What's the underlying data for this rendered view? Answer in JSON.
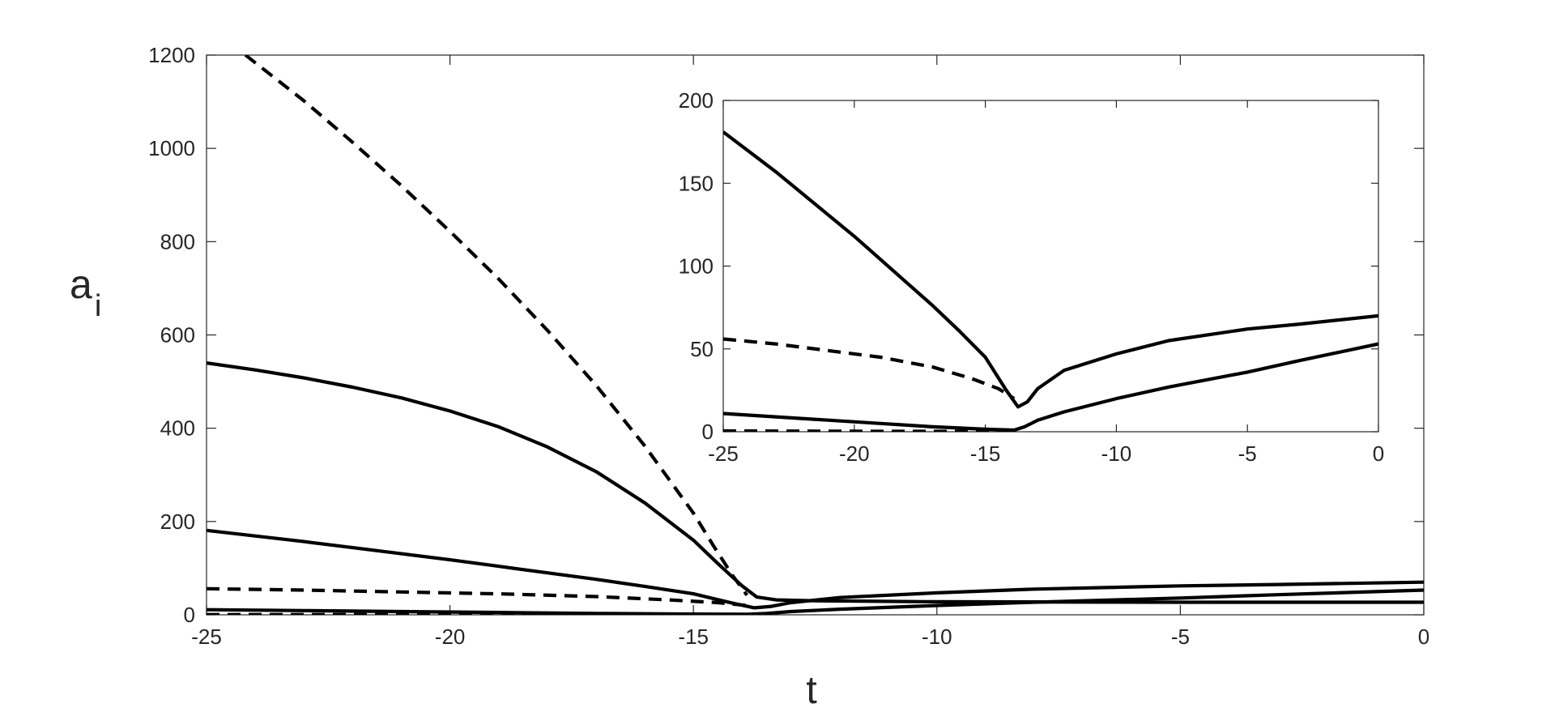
{
  "chart_data": [
    {
      "type": "line",
      "panel": "main",
      "xlabel": "t",
      "ylabel": "a",
      "ylabel_subscript": "i",
      "xlim": [
        -25,
        0
      ],
      "ylim": [
        0,
        1200
      ],
      "xticks": [
        -25,
        -20,
        -15,
        -10,
        -5,
        0
      ],
      "yticks": [
        0,
        200,
        400,
        600,
        800,
        1000,
        1200
      ],
      "grid": false,
      "series": [
        {
          "style": "dashed",
          "points": [
            [
              -24.2,
              1200
            ],
            [
              -23,
              1102
            ],
            [
              -22,
              1013
            ],
            [
              -21,
              920
            ],
            [
              -20,
              822
            ],
            [
              -19,
              720
            ],
            [
              -18,
              610
            ],
            [
              -17,
              492
            ],
            [
              -16,
              362
            ],
            [
              -15,
              218
            ],
            [
              -14.6,
              150
            ],
            [
              -14.2,
              85
            ],
            [
              -13.9,
              42
            ]
          ]
        },
        {
          "style": "solid",
          "points": [
            [
              -25,
              540
            ],
            [
              -24,
              525
            ],
            [
              -23,
              508
            ],
            [
              -22,
              488
            ],
            [
              -21,
              465
            ],
            [
              -20,
              437
            ],
            [
              -19,
              403
            ],
            [
              -18,
              360
            ],
            [
              -17,
              307
            ],
            [
              -16,
              240
            ],
            [
              -15,
              160
            ],
            [
              -14.5,
              110
            ],
            [
              -14,
              62
            ],
            [
              -13.7,
              38
            ],
            [
              -13.3,
              32
            ],
            [
              -12.5,
              30
            ],
            [
              -10,
              28
            ],
            [
              -5,
              27
            ],
            [
              0,
              27
            ]
          ]
        },
        {
          "style": "solid",
          "points": [
            [
              -25,
              181
            ],
            [
              -24,
              169
            ],
            [
              -23,
              157
            ],
            [
              -22,
              144
            ],
            [
              -21,
              131
            ],
            [
              -20,
              118
            ],
            [
              -19,
              104
            ],
            [
              -18,
              90
            ],
            [
              -17,
              76
            ],
            [
              -16,
              61
            ],
            [
              -15,
              45
            ],
            [
              -14.2,
              25
            ],
            [
              -13.75,
              15
            ],
            [
              -13.4,
              18
            ],
            [
              -13,
              26
            ],
            [
              -12,
              37
            ],
            [
              -10,
              47
            ],
            [
              -8,
              55
            ],
            [
              -5,
              62
            ],
            [
              -3,
              65
            ],
            [
              0,
              70
            ]
          ]
        },
        {
          "style": "dashed",
          "points": [
            [
              -25,
              56
            ],
            [
              -23,
              53
            ],
            [
              -21,
              49
            ],
            [
              -19,
              45
            ],
            [
              -17,
              39
            ],
            [
              -15.5,
              32
            ],
            [
              -14.5,
              26
            ],
            [
              -13.9,
              20
            ]
          ]
        },
        {
          "style": "solid",
          "points": [
            [
              -25,
              11
            ],
            [
              -23,
              9
            ],
            [
              -21,
              7
            ],
            [
              -19,
              5
            ],
            [
              -17,
              3
            ],
            [
              -15,
              1.5
            ],
            [
              -13.9,
              1
            ],
            [
              -13.5,
              3
            ],
            [
              -13,
              7
            ],
            [
              -12,
              12
            ],
            [
              -10,
              20
            ],
            [
              -8,
              27
            ],
            [
              -5,
              36
            ],
            [
              -3,
              43
            ],
            [
              0,
              53
            ]
          ]
        },
        {
          "style": "dashed",
          "points": [
            [
              -25,
              0.5
            ],
            [
              -20,
              0.3
            ],
            [
              -15,
              0.2
            ],
            [
              -13.9,
              0.2
            ]
          ]
        }
      ]
    },
    {
      "type": "line",
      "panel": "inset",
      "xlim": [
        -25,
        0
      ],
      "ylim": [
        0,
        200
      ],
      "xticks": [
        -25,
        -20,
        -15,
        -10,
        -5,
        0
      ],
      "yticks": [
        0,
        50,
        100,
        150,
        200
      ],
      "grid": false,
      "series": [
        {
          "style": "solid",
          "points": [
            [
              -25,
              181
            ],
            [
              -24,
              169
            ],
            [
              -23,
              157
            ],
            [
              -22,
              144
            ],
            [
              -21,
              131
            ],
            [
              -20,
              118
            ],
            [
              -19,
              104
            ],
            [
              -18,
              90
            ],
            [
              -17,
              76
            ],
            [
              -16,
              61
            ],
            [
              -15,
              45
            ],
            [
              -14.2,
              25
            ],
            [
              -13.75,
              15
            ],
            [
              -13.4,
              18
            ],
            [
              -13,
              26
            ],
            [
              -12,
              37
            ],
            [
              -10,
              47
            ],
            [
              -8,
              55
            ],
            [
              -5,
              62
            ],
            [
              -3,
              65
            ],
            [
              0,
              70
            ]
          ]
        },
        {
          "style": "dashed",
          "points": [
            [
              -25,
              56
            ],
            [
              -23,
              53
            ],
            [
              -21,
              49
            ],
            [
              -19,
              45
            ],
            [
              -17,
              39
            ],
            [
              -15.5,
              32
            ],
            [
              -14.5,
              26
            ],
            [
              -13.9,
              20
            ]
          ]
        },
        {
          "style": "solid",
          "points": [
            [
              -25,
              11
            ],
            [
              -23,
              9
            ],
            [
              -21,
              7
            ],
            [
              -19,
              5
            ],
            [
              -17,
              3
            ],
            [
              -15,
              1.5
            ],
            [
              -13.9,
              1
            ],
            [
              -13.5,
              3
            ],
            [
              -13,
              7
            ],
            [
              -12,
              12
            ],
            [
              -10,
              20
            ],
            [
              -8,
              27
            ],
            [
              -5,
              36
            ],
            [
              -3,
              43
            ],
            [
              0,
              53
            ]
          ]
        },
        {
          "style": "dashed",
          "points": [
            [
              -25,
              0.5
            ],
            [
              -20,
              0.3
            ],
            [
              -15,
              0.2
            ],
            [
              -13.9,
              0.2
            ]
          ]
        }
      ]
    }
  ]
}
